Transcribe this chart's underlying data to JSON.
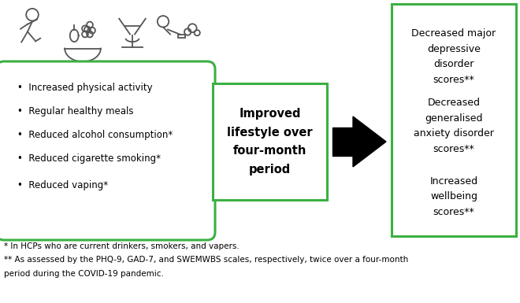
{
  "bg_color": "#ffffff",
  "green_color": "#3cb043",
  "black_color": "#000000",
  "gray_color": "#555555",
  "bullet_items": [
    "Increased physical activity",
    "Regular healthy meals",
    "Reduced alcohol consumption*",
    "Reduced cigarette smoking*",
    "Reduced vaping*"
  ],
  "center_box_text": "Improved\nlifestyle over\nfour-month\nperiod",
  "right_box_texts": [
    "Decreased major\ndepressive\ndisorder\nscores**",
    "Decreased\ngeneralised\nanxiety disorder\nscores**",
    "Increased\nwellbeing\nscores**"
  ],
  "footnote1": "* In HCPs who are current drinkers, smokers, and vapers.",
  "footnote2": "** As assessed by the PHQ-9, GAD-7, and SWEMWBS scales, respectively, twice over a four-month",
  "footnote3": "period during the COVID-19 pandemic."
}
